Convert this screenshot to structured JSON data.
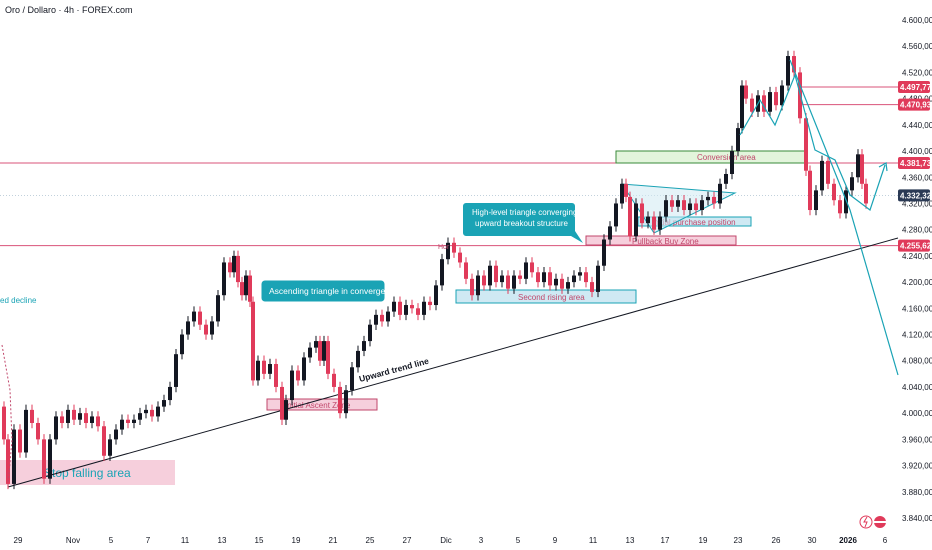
{
  "header": {
    "title": "Oro / Dollaro · 4h · FOREX.com"
  },
  "colors": {
    "up": "#131722",
    "down": "#e03a5a",
    "teal": "#1aa3b5",
    "pink_line": "#d9537a",
    "price_badge_red": "#e03a5a",
    "price_badge_dark": "#2b3a55",
    "zone_blue_fill": "#cfe9f3",
    "zone_blue_border": "#1aa3b5",
    "zone_pink_fill": "#f6cfdc",
    "zone_pink_border": "#c0476b",
    "zone_green_fill": "#e3f5dc",
    "zone_green_border": "#3a8a3a"
  },
  "chart_data": {
    "type": "candlestick",
    "title": "Oro / Dollaro · 4h · FOREX.com",
    "ylim": [
      3840,
      4600
    ],
    "y_ticks": [
      "4.600,00",
      "4.560,00",
      "4.520,00",
      "4.480,00",
      "4.440,00",
      "4.400,00",
      "4.360,00",
      "4.320,00",
      "4.280,00",
      "4.240,00",
      "4.200,00",
      "4.160,00",
      "4.120,00",
      "4.080,00",
      "4.040,00",
      "4.000,00",
      "3.960,00",
      "3.920,00",
      "3.880,00",
      "3.840,00"
    ],
    "x_ticks": [
      "29",
      "Nov",
      "5",
      "7",
      "11",
      "13",
      "15",
      "19",
      "21",
      "25",
      "27",
      "Dic",
      "3",
      "5",
      "9",
      "11",
      "13",
      "17",
      "19",
      "23",
      "26",
      "30",
      "2026",
      "6"
    ],
    "price_labels": [
      {
        "value": 4497.77,
        "text": "4.497,77",
        "style": "red"
      },
      {
        "value": 4470.93,
        "text": "4.470,93",
        "style": "red"
      },
      {
        "value": 4381.73,
        "text": "4.381,73",
        "style": "red"
      },
      {
        "value": 4332.32,
        "text": "4.332,32",
        "style": "dark"
      },
      {
        "value": 4255.62,
        "text": "4.255,62",
        "style": "red"
      }
    ],
    "path_points": [
      [
        0,
        4010
      ],
      [
        4,
        3960
      ],
      [
        8,
        3892
      ],
      [
        14,
        3975
      ],
      [
        20,
        3940
      ],
      [
        26,
        4005
      ],
      [
        32,
        3985
      ],
      [
        38,
        3960
      ],
      [
        44,
        3900
      ],
      [
        50,
        3960
      ],
      [
        56,
        3995
      ],
      [
        62,
        3985
      ],
      [
        68,
        4005
      ],
      [
        74,
        3990
      ],
      [
        80,
        4000
      ],
      [
        86,
        3985
      ],
      [
        92,
        3995
      ],
      [
        98,
        3980
      ],
      [
        104,
        3935
      ],
      [
        110,
        3960
      ],
      [
        116,
        3975
      ],
      [
        122,
        3990
      ],
      [
        128,
        3985
      ],
      [
        134,
        3990
      ],
      [
        140,
        4000
      ],
      [
        146,
        4005
      ],
      [
        152,
        3995
      ],
      [
        158,
        4010
      ],
      [
        164,
        4020
      ],
      [
        170,
        4040
      ],
      [
        176,
        4090
      ],
      [
        182,
        4120
      ],
      [
        188,
        4140
      ],
      [
        194,
        4155
      ],
      [
        200,
        4135
      ],
      [
        206,
        4120
      ],
      [
        212,
        4140
      ],
      [
        218,
        4180
      ],
      [
        224,
        4230
      ],
      [
        230,
        4215
      ],
      [
        234,
        4240
      ],
      [
        238,
        4200
      ],
      [
        242,
        4180
      ],
      [
        246,
        4210
      ],
      [
        250,
        4170
      ],
      [
        253,
        4050
      ],
      [
        258,
        4080
      ],
      [
        264,
        4060
      ],
      [
        270,
        4075
      ],
      [
        276,
        4040
      ],
      [
        282,
        3990
      ],
      [
        286,
        4020
      ],
      [
        292,
        4065
      ],
      [
        298,
        4050
      ],
      [
        304,
        4085
      ],
      [
        310,
        4100
      ],
      [
        316,
        4110
      ],
      [
        320,
        4080
      ],
      [
        324,
        4110
      ],
      [
        328,
        4060
      ],
      [
        334,
        4040
      ],
      [
        340,
        4000
      ],
      [
        346,
        4035
      ],
      [
        352,
        4070
      ],
      [
        358,
        4095
      ],
      [
        364,
        4110
      ],
      [
        370,
        4135
      ],
      [
        376,
        4150
      ],
      [
        382,
        4140
      ],
      [
        388,
        4155
      ],
      [
        394,
        4170
      ],
      [
        400,
        4150
      ],
      [
        406,
        4165
      ],
      [
        412,
        4160
      ],
      [
        418,
        4150
      ],
      [
        424,
        4170
      ],
      [
        430,
        4165
      ],
      [
        436,
        4195
      ],
      [
        442,
        4235
      ],
      [
        448,
        4260
      ],
      [
        454,
        4245
      ],
      [
        460,
        4230
      ],
      [
        466,
        4205
      ],
      [
        472,
        4180
      ],
      [
        478,
        4210
      ],
      [
        484,
        4195
      ],
      [
        490,
        4225
      ],
      [
        496,
        4200
      ],
      [
        502,
        4210
      ],
      [
        508,
        4190
      ],
      [
        514,
        4210
      ],
      [
        520,
        4205
      ],
      [
        526,
        4230
      ],
      [
        532,
        4215
      ],
      [
        538,
        4200
      ],
      [
        544,
        4215
      ],
      [
        550,
        4195
      ],
      [
        556,
        4205
      ],
      [
        562,
        4190
      ],
      [
        568,
        4200
      ],
      [
        574,
        4210
      ],
      [
        580,
        4215
      ],
      [
        586,
        4200
      ],
      [
        592,
        4185
      ],
      [
        598,
        4225
      ],
      [
        604,
        4265
      ],
      [
        610,
        4285
      ],
      [
        616,
        4320
      ],
      [
        622,
        4350
      ],
      [
        626,
        4330
      ],
      [
        630,
        4270
      ],
      [
        636,
        4320
      ],
      [
        642,
        4290
      ],
      [
        648,
        4300
      ],
      [
        654,
        4280
      ],
      [
        660,
        4300
      ],
      [
        666,
        4325
      ],
      [
        672,
        4315
      ],
      [
        678,
        4325
      ],
      [
        684,
        4310
      ],
      [
        690,
        4320
      ],
      [
        696,
        4310
      ],
      [
        702,
        4325
      ],
      [
        708,
        4330
      ],
      [
        714,
        4320
      ],
      [
        720,
        4350
      ],
      [
        726,
        4365
      ],
      [
        732,
        4400
      ],
      [
        738,
        4435
      ],
      [
        742,
        4500
      ],
      [
        746,
        4480
      ],
      [
        752,
        4460
      ],
      [
        758,
        4485
      ],
      [
        764,
        4460
      ],
      [
        770,
        4490
      ],
      [
        776,
        4470
      ],
      [
        782,
        4500
      ],
      [
        788,
        4545
      ],
      [
        794,
        4520
      ],
      [
        800,
        4450
      ],
      [
        806,
        4370
      ],
      [
        810,
        4310
      ],
      [
        816,
        4340
      ],
      [
        822,
        4385
      ],
      [
        828,
        4350
      ],
      [
        834,
        4325
      ],
      [
        840,
        4305
      ],
      [
        846,
        4340
      ],
      [
        852,
        4360
      ],
      [
        858,
        4395
      ],
      [
        862,
        4350
      ],
      [
        866,
        4320
      ]
    ],
    "series_styles": [
      "pink_line",
      "teal"
    ]
  },
  "annotations": {
    "convergence_label": "Ascending triangle in convergence",
    "triangle_label": "High-level triangle converging\nupward breakout structure",
    "trend_line_label": "Upward trend line",
    "stop_falling": "Stop falling area",
    "initial_ascent": "Initial Ascent Zone",
    "second_rising": "Second rising area",
    "pullback_buy": "Pullback Buy Zone",
    "initial_purchase": "Initial purchase position",
    "conversion_area": "Conversion area",
    "horizon_tag": "Hor",
    "left_edge_text": "ed decline"
  }
}
